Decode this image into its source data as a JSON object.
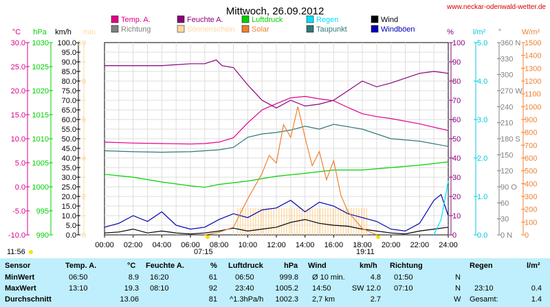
{
  "title": "Mittwoch, 26.09.2012",
  "site": "www.neckar-odenwald-wetter.de",
  "colors": {
    "temp": "#e0008a",
    "feuchte": "#8a007a",
    "luftdruck": "#00d000",
    "regen": "#00e0ff",
    "wind": "#000000",
    "richtung": "#808080",
    "sonne": "#ffd8a0",
    "solar": "#f08030",
    "taupunkt": "#307878",
    "boeen": "#0000b0",
    "grid": "#dcdcdc"
  },
  "legend": [
    {
      "label": "Temp. A.",
      "color": "#e0008a"
    },
    {
      "label": "Feuchte A.",
      "color": "#8a007a"
    },
    {
      "label": "Luftdruck",
      "color": "#00d000"
    },
    {
      "label": "Regen",
      "color": "#00e0ff"
    },
    {
      "label": "Wind",
      "color": "#000000"
    },
    {
      "label": "Richtung",
      "color": "#808080"
    },
    {
      "label": "Sonnenschein",
      "color": "#ffd8a0"
    },
    {
      "label": "Solar",
      "color": "#f08030"
    },
    {
      "label": "Taupunkt",
      "color": "#307878"
    },
    {
      "label": "Windböen",
      "color": "#0000b0"
    }
  ],
  "chart_data": {
    "type": "line",
    "x_ticks": [
      "00:00",
      "02:00",
      "04:00",
      "06:00",
      "08:00",
      "10:00",
      "12:00",
      "14:00",
      "16:00",
      "18:00",
      "20:00",
      "22:00",
      "24:00"
    ],
    "sunrise": "07:15",
    "sunset": "19:11",
    "moonrise": "11:56",
    "axes": [
      {
        "unit": "°C",
        "color": "#e0008a",
        "ticks": [
          "30.0",
          "25.0",
          "20.0",
          "15.0",
          "10.0",
          "5.0",
          "0.0",
          "-5.0",
          "-10.0"
        ],
        "range": [
          -10,
          30
        ]
      },
      {
        "unit": "hPa",
        "color": "#00d000",
        "ticks": [
          "1030",
          "1025",
          "1020",
          "1015",
          "1010",
          "1005",
          "1000",
          "995",
          "990"
        ],
        "range": [
          990,
          1030
        ]
      },
      {
        "unit": "km/h",
        "color": "#000000",
        "ticks": [
          "100.0",
          "95.0",
          "90.0",
          "85.0",
          "80.0",
          "75.0",
          "70.0",
          "65.0",
          "60.0",
          "55.0",
          "50.0",
          "45.0",
          "40.0",
          "35.0",
          "30.0",
          "25.0",
          "20.0",
          "15.0",
          "10.0",
          "5.0",
          "0.0"
        ],
        "range": [
          0,
          100
        ]
      },
      {
        "unit": "min",
        "color": "#ffd8a0",
        "ticks": [
          "10",
          "",
          "8",
          "",
          "6",
          "",
          "4",
          "",
          "2",
          "",
          "0"
        ],
        "range": [
          0,
          10
        ]
      },
      {
        "unit": "%",
        "color": "#8a007a",
        "ticks": [
          "100",
          "90",
          "80",
          "70",
          "60",
          "50",
          "40",
          "30",
          "20",
          "10",
          "0"
        ],
        "range": [
          0,
          100
        ]
      },
      {
        "unit": "l/m²",
        "color": "#00c8e0",
        "ticks": [
          "5.0",
          "4.0",
          "3.0",
          "2.0",
          "1.0",
          "0.0"
        ],
        "range": [
          0,
          5
        ]
      },
      {
        "unit": "°",
        "color": "#808080",
        "ticks": [
          "360 N",
          "330",
          "300",
          "270 W",
          "240",
          "210",
          "180 S",
          "150",
          "120",
          "90 O",
          "60",
          "30",
          "0 N"
        ],
        "range": [
          0,
          360
        ]
      },
      {
        "unit": "W/m²",
        "color": "#f08030",
        "ticks": [
          "1500",
          "1400",
          "1300",
          "1200",
          "1100",
          "1000",
          "900",
          "800",
          "700",
          "600",
          "500",
          "400",
          "300",
          "200",
          "100",
          "0"
        ],
        "range": [
          0,
          1500
        ]
      }
    ],
    "series": [
      {
        "name": "Temp. A.",
        "axis": "°C",
        "x": [
          0,
          2,
          4,
          6,
          7,
          8,
          9,
          10,
          11,
          12,
          13,
          14,
          15,
          16,
          17,
          18,
          19,
          20,
          22,
          24
        ],
        "y": [
          9.3,
          9.1,
          9.0,
          8.9,
          9.0,
          9.3,
          10.2,
          13.3,
          16.0,
          17.3,
          18.5,
          18.8,
          18.3,
          17.9,
          16.5,
          15.2,
          14.6,
          14.2,
          13.1,
          11.7
        ]
      },
      {
        "name": "Feuchte A.",
        "axis": "%",
        "x": [
          0,
          2,
          4,
          6,
          7,
          7.8,
          8.2,
          9,
          10,
          11,
          12,
          13,
          14,
          15,
          16,
          17,
          18,
          19,
          20,
          22,
          23,
          24
        ],
        "y": [
          88,
          88,
          88,
          89,
          89,
          91,
          88,
          87,
          78,
          70,
          66,
          70,
          67,
          68,
          70,
          75,
          80,
          77,
          79,
          84,
          85,
          84
        ]
      },
      {
        "name": "Luftdruck",
        "axis": "hPa",
        "x": [
          0,
          2,
          4,
          6,
          7,
          8,
          10,
          12,
          14,
          16,
          18,
          20,
          22,
          24
        ],
        "y": [
          1002.6,
          1002.0,
          1001.0,
          1000.2,
          999.9,
          1000.5,
          1001.2,
          1002.2,
          1002.8,
          1003.5,
          1003.5,
          1004.0,
          1004.5,
          1005.2
        ]
      },
      {
        "name": "Taupunkt",
        "axis": "°C",
        "x": [
          0,
          2,
          4,
          6,
          7,
          8,
          9,
          10,
          11,
          12,
          13,
          14,
          15,
          16,
          17,
          18,
          19,
          20,
          22,
          24
        ],
        "y": [
          7.5,
          7.3,
          7.2,
          7.3,
          7.5,
          7.7,
          8.2,
          10.3,
          11.0,
          11.3,
          11.8,
          12.6,
          12.0,
          13.0,
          12.5,
          12.0,
          11.0,
          10.0,
          9.5,
          8.4
        ]
      },
      {
        "name": "Wind",
        "axis": "km/h",
        "x": [
          0,
          1,
          2,
          3,
          4,
          5,
          6,
          7,
          8,
          9,
          10,
          11,
          12,
          13,
          14,
          15,
          16,
          17,
          18,
          19,
          20,
          21,
          22,
          23,
          24
        ],
        "y": [
          1,
          1.5,
          3,
          1,
          2,
          1,
          0.5,
          1,
          2,
          3.5,
          2,
          3,
          4,
          6.5,
          8,
          6,
          5,
          4.5,
          3,
          2,
          1,
          0.5,
          2,
          3,
          4
        ]
      },
      {
        "name": "Windböen",
        "axis": "km/h",
        "x": [
          0,
          1,
          2,
          3,
          4,
          5,
          6,
          7,
          8,
          9,
          10,
          11,
          12,
          13,
          14,
          15,
          16,
          17,
          18,
          19,
          20,
          21,
          22,
          23,
          23.5,
          24
        ],
        "y": [
          4,
          6,
          10,
          7,
          12,
          5,
          3,
          4,
          8,
          11,
          9,
          13,
          14,
          18,
          12,
          17,
          15,
          11,
          9,
          7,
          3,
          2,
          6,
          18,
          21,
          10
        ]
      },
      {
        "name": "Solar",
        "axis": "W/m²",
        "x": [
          7,
          8,
          9,
          10,
          11,
          11.5,
          12,
          12.5,
          13,
          13.5,
          14,
          14.5,
          15,
          15.5,
          16,
          16.5,
          17,
          18,
          19
        ],
        "y": [
          0,
          20,
          60,
          280,
          480,
          620,
          560,
          860,
          760,
          1000,
          760,
          540,
          650,
          430,
          580,
          310,
          180,
          50,
          0
        ]
      },
      {
        "name": "Regen",
        "axis": "l/m²",
        "x": [
          23.0,
          23.5,
          24
        ],
        "y": [
          0,
          0.4,
          1.4
        ]
      }
    ]
  },
  "table": {
    "headers": [
      "Sensor",
      "Temp. A.",
      "°C",
      "Feuchte A.",
      "%",
      "Luftdruck",
      "hPa",
      "Wind",
      "km/h",
      "Richtung",
      "Regen",
      "l/m²"
    ],
    "rows": [
      {
        "label": "MinWert",
        "temp_time": "06:50",
        "temp": "8.9",
        "hum_time": "16:20",
        "hum": "61",
        "press_time": "06:50",
        "press": "999.8",
        "wind_label": "Ø 10 min.",
        "wind": "4.8",
        "dir_time": "01:50",
        "dir": "N",
        "rain_time": "",
        "rain": ""
      },
      {
        "label": "MaxWert",
        "temp_time": "13:10",
        "temp": "19.3",
        "hum_time": "08:10",
        "hum": "92",
        "press_time": "23:40",
        "press": "1005.2",
        "wind_label": "14:50",
        "wind_extra": "SW 12.0",
        "wind": "",
        "dir_time": "07:10",
        "dir": "N",
        "rain_time": "23:10",
        "rain": "0.4"
      },
      {
        "label": "Durchschnitt",
        "temp_time": "",
        "temp": "13.06",
        "hum_time": "",
        "hum": "81",
        "press_time": "^1.3hPa/h",
        "press": "1002.3",
        "wind_label": "2,7 km",
        "wind": "2.7",
        "dir_time": "",
        "dir": "W",
        "rain_time": "Gesamt:",
        "rain": "1.4"
      }
    ]
  }
}
